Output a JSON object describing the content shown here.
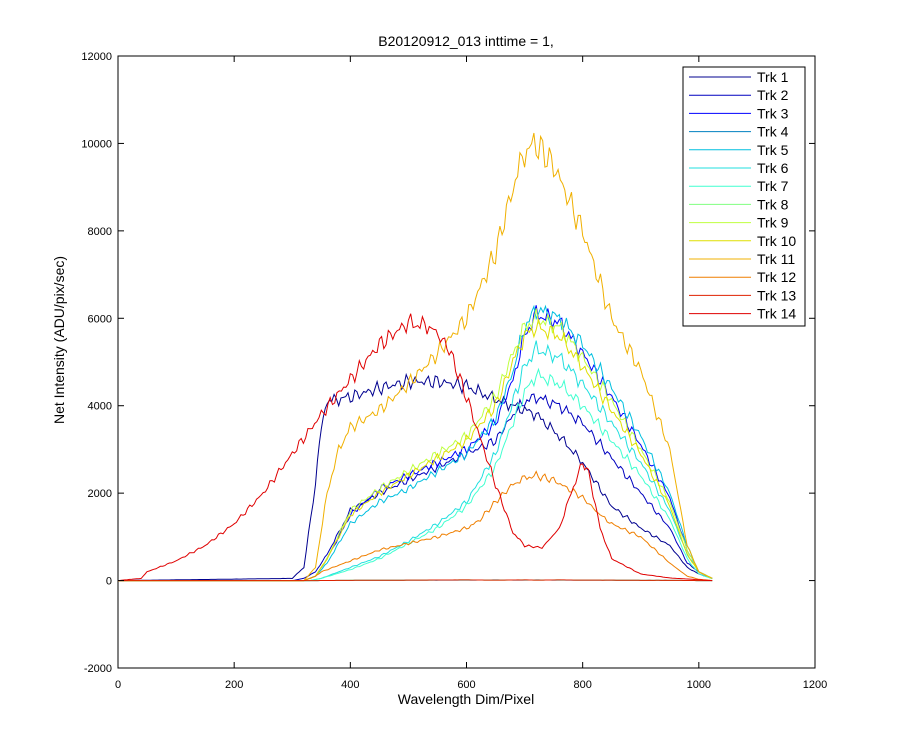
{
  "chart_data": {
    "type": "line",
    "title": "B20120912_013 inttime = 1,",
    "xlabel": "Wavelength Dim/Pixel",
    "ylabel": "Net Intensity (ADU/pix/sec)",
    "xlim": [
      0,
      1200
    ],
    "ylim": [
      -2000,
      12000
    ],
    "xticks": [
      0,
      200,
      400,
      600,
      800,
      1000,
      1200
    ],
    "yticks": [
      -2000,
      0,
      2000,
      4000,
      6000,
      8000,
      10000,
      12000
    ],
    "xtick_labels": [
      "0",
      "200",
      "400",
      "600",
      "800",
      "1000",
      "1200"
    ],
    "ytick_labels": [
      "-2000",
      "0",
      "2000",
      "4000",
      "6000",
      "8000",
      "10000",
      "12000"
    ],
    "grid": false,
    "legend_position": "top-right",
    "series": [
      {
        "name": "Trk 1",
        "color": "#00008F",
        "x": [
          0,
          300,
          320,
          340,
          350,
          360,
          380,
          400,
          450,
          500,
          550,
          600,
          640,
          680,
          700,
          720,
          760,
          800,
          850,
          900,
          950,
          980,
          1000,
          1023
        ],
        "y": [
          0,
          50,
          300,
          2200,
          3600,
          4100,
          4150,
          4200,
          4400,
          4550,
          4550,
          4450,
          4200,
          4000,
          3900,
          3800,
          3300,
          2700,
          1700,
          1200,
          800,
          300,
          150,
          50
        ]
      },
      {
        "name": "Trk 2",
        "color": "#0000BF",
        "x": [
          0,
          300,
          320,
          340,
          360,
          400,
          450,
          500,
          550,
          600,
          650,
          680,
          700,
          720,
          760,
          800,
          850,
          900,
          950,
          980,
          1000,
          1023
        ],
        "y": [
          0,
          0,
          50,
          200,
          600,
          1600,
          2000,
          2300,
          2600,
          2900,
          3200,
          3800,
          4100,
          4200,
          4000,
          3600,
          2800,
          2000,
          1200,
          400,
          200,
          50
        ]
      },
      {
        "name": "Trk 3",
        "color": "#0000FF",
        "x": [
          0,
          320,
          340,
          360,
          400,
          450,
          500,
          550,
          600,
          650,
          680,
          700,
          720,
          760,
          800,
          850,
          900,
          950,
          980,
          1000,
          1023
        ],
        "y": [
          0,
          0,
          100,
          500,
          1500,
          2100,
          2400,
          2700,
          3000,
          3600,
          4600,
          5600,
          6100,
          5900,
          5200,
          4200,
          3100,
          1900,
          700,
          200,
          50
        ]
      },
      {
        "name": "Trk 4",
        "color": "#0080C0",
        "x": [
          0,
          320,
          340,
          400,
          500,
          600,
          650,
          700,
          720,
          760,
          800,
          850,
          900,
          950,
          1000,
          1023
        ],
        "y": [
          0,
          0,
          0,
          5,
          10,
          10,
          15,
          10,
          15,
          10,
          10,
          10,
          5,
          5,
          0,
          0
        ]
      },
      {
        "name": "Trk 5",
        "color": "#00BFDF",
        "x": [
          0,
          320,
          340,
          360,
          400,
          450,
          500,
          550,
          600,
          650,
          680,
          700,
          720,
          760,
          800,
          850,
          900,
          950,
          980,
          1000,
          1023
        ],
        "y": [
          0,
          0,
          100,
          400,
          1300,
          1800,
          2100,
          2500,
          2900,
          3700,
          4800,
          5800,
          6200,
          6000,
          5400,
          4400,
          3300,
          2000,
          800,
          200,
          50
        ]
      },
      {
        "name": "Trk 6",
        "color": "#20DFDF",
        "x": [
          0,
          330,
          350,
          400,
          450,
          500,
          550,
          600,
          650,
          700,
          720,
          760,
          800,
          850,
          900,
          950,
          980,
          1000,
          1023
        ],
        "y": [
          0,
          0,
          50,
          300,
          550,
          900,
          1300,
          1800,
          2900,
          4900,
          5300,
          5100,
          4500,
          3600,
          2700,
          1600,
          600,
          200,
          50
        ]
      },
      {
        "name": "Trk 7",
        "color": "#40FFD0",
        "x": [
          0,
          330,
          350,
          400,
          450,
          500,
          550,
          600,
          650,
          700,
          720,
          760,
          800,
          850,
          900,
          950,
          980,
          1000,
          1023
        ],
        "y": [
          0,
          0,
          50,
          250,
          500,
          850,
          1200,
          1700,
          2600,
          4300,
          4700,
          4500,
          4000,
          3200,
          2400,
          1400,
          500,
          150,
          40
        ]
      },
      {
        "name": "Trk 8",
        "color": "#80FF80",
        "x": [
          0,
          320,
          340,
          400,
          500,
          600,
          650,
          700,
          720,
          760,
          800,
          850,
          900,
          950,
          1000,
          1023
        ],
        "y": [
          0,
          0,
          0,
          5,
          10,
          15,
          10,
          15,
          10,
          15,
          10,
          10,
          5,
          5,
          0,
          0
        ]
      },
      {
        "name": "Trk 9",
        "color": "#BFFF40",
        "x": [
          0,
          320,
          340,
          360,
          400,
          450,
          500,
          550,
          600,
          650,
          680,
          700,
          720,
          760,
          800,
          850,
          900,
          950,
          980,
          1000,
          1023
        ],
        "y": [
          0,
          0,
          100,
          500,
          1600,
          2100,
          2500,
          2900,
          3300,
          4200,
          5200,
          5800,
          6000,
          5800,
          5100,
          4100,
          3000,
          1800,
          700,
          200,
          50
        ]
      },
      {
        "name": "Trk 10",
        "color": "#DFDF00",
        "x": [
          0,
          320,
          340,
          360,
          400,
          450,
          500,
          550,
          600,
          650,
          680,
          700,
          720,
          760,
          800,
          850,
          900,
          950,
          980,
          1000,
          1023
        ],
        "y": [
          0,
          0,
          100,
          500,
          1500,
          2000,
          2400,
          2800,
          3200,
          4000,
          5000,
          5600,
          5800,
          5600,
          4900,
          3900,
          2900,
          1700,
          600,
          200,
          50
        ]
      },
      {
        "name": "Trk 11",
        "color": "#F0B000",
        "x": [
          0,
          320,
          340,
          360,
          380,
          400,
          450,
          500,
          550,
          600,
          650,
          680,
          700,
          720,
          750,
          800,
          850,
          900,
          950,
          980,
          1000,
          1023
        ],
        "y": [
          0,
          0,
          300,
          2000,
          3000,
          3500,
          3900,
          4500,
          5200,
          6000,
          7500,
          9000,
          9800,
          10000,
          9500,
          8000,
          6000,
          4800,
          3000,
          800,
          200,
          50
        ]
      },
      {
        "name": "Trk 12",
        "color": "#EF7F00",
        "x": [
          0,
          320,
          340,
          350,
          400,
          450,
          500,
          550,
          600,
          620,
          650,
          680,
          700,
          720,
          750,
          800,
          830,
          850,
          900,
          950,
          980,
          1000,
          1023
        ],
        "y": [
          0,
          0,
          100,
          200,
          450,
          700,
          850,
          1000,
          1200,
          1350,
          1800,
          2200,
          2350,
          2400,
          2300,
          1900,
          1500,
          1300,
          1000,
          400,
          100,
          30,
          0
        ]
      },
      {
        "name": "Trk 13",
        "color": "#DF2000",
        "x": [
          0,
          320,
          340,
          400,
          500,
          600,
          650,
          700,
          720,
          760,
          800,
          850,
          900,
          950,
          1000,
          1023
        ],
        "y": [
          0,
          0,
          0,
          5,
          10,
          15,
          10,
          15,
          10,
          15,
          10,
          10,
          5,
          5,
          0,
          0
        ]
      },
      {
        "name": "Trk 14",
        "color": "#DF0000",
        "x": [
          0,
          40,
          50,
          100,
          150,
          200,
          250,
          300,
          350,
          400,
          450,
          500,
          540,
          570,
          600,
          650,
          680,
          700,
          730,
          760,
          780,
          800,
          810,
          830,
          850,
          900,
          950,
          1000,
          1023
        ],
        "y": [
          0,
          50,
          200,
          450,
          800,
          1300,
          2000,
          2900,
          3800,
          4600,
          5400,
          5900,
          5800,
          5300,
          4200,
          2200,
          1100,
          800,
          750,
          1200,
          2000,
          2700,
          2500,
          1200,
          500,
          150,
          60,
          20,
          0
        ]
      }
    ]
  }
}
